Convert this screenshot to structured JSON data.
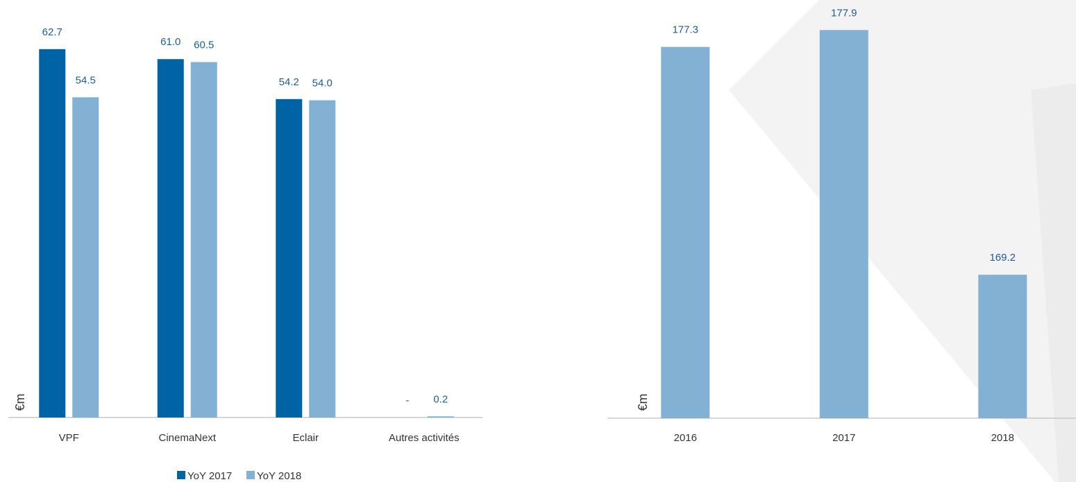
{
  "chart_data": [
    {
      "type": "bar",
      "y_label": "€m",
      "categories": [
        "VPF",
        "CinemaNext",
        "Eclair",
        "Autres activités"
      ],
      "series": [
        {
          "name": "YoY 2017",
          "color": "#0063a6",
          "values": [
            62.7,
            61.0,
            54.2,
            0
          ],
          "value_labels": [
            "62.7",
            "61.0",
            "54.2",
            "-"
          ]
        },
        {
          "name": "YoY 2018",
          "color": "#82b1d4",
          "values": [
            54.5,
            60.5,
            54.0,
            0.2
          ],
          "value_labels": [
            "54.5",
            "60.5",
            "54.0",
            "0.2"
          ]
        }
      ],
      "ylim": [
        0,
        70
      ],
      "legend": "bottom"
    },
    {
      "type": "bar",
      "y_label": "€m",
      "categories": [
        "2016",
        "2017",
        "2018"
      ],
      "values": [
        177.3,
        177.9,
        169.2
      ],
      "color": "#82b1d4",
      "ylim": [
        164.1,
        178.5
      ]
    }
  ]
}
